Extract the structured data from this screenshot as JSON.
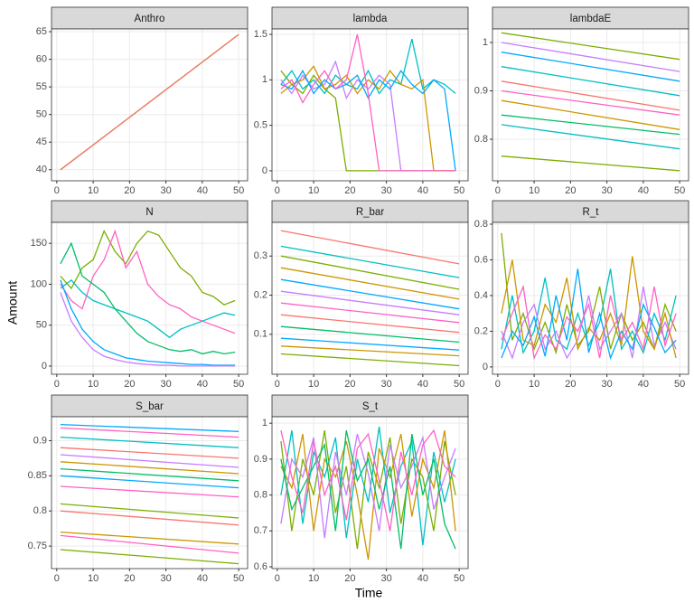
{
  "xlabel": "Time",
  "ylabel": "Amount",
  "chart_data": [
    {
      "type": "line",
      "title": "Anthro",
      "x": [
        1,
        50
      ],
      "xlim": [
        -1.45,
        52.45
      ],
      "xticks": [
        0,
        10,
        20,
        30,
        40,
        50
      ],
      "ylim": [
        38.0,
        65.5
      ],
      "yticks": [
        40,
        45,
        50,
        55,
        60,
        65
      ],
      "grid": true,
      "series": [
        {
          "color": "#7CAE00",
          "values": [
            40,
            64.5
          ]
        },
        {
          "color": "#F8766D",
          "values": [
            40,
            64.5
          ]
        }
      ]
    },
    {
      "type": "line",
      "title": "lambda",
      "x": [
        1,
        4,
        7,
        10,
        13,
        16,
        19,
        22,
        25,
        28,
        31,
        34,
        37,
        40,
        43,
        46,
        49
      ],
      "xlim": [
        -1.45,
        52.45
      ],
      "xticks": [
        0,
        10,
        20,
        30,
        40,
        50
      ],
      "ylim": [
        -0.11,
        1.56
      ],
      "yticks": [
        0.0,
        0.5,
        1.0,
        1.5
      ],
      "grid": true,
      "series": [
        {
          "color": "#7CAE00",
          "values": [
            1.1,
            0.95,
            0.85,
            1.05,
            0.9,
            0.8,
            0,
            0,
            0,
            0,
            0,
            0,
            0,
            0,
            0,
            0,
            0
          ]
        },
        {
          "color": "#00BFC4",
          "values": [
            0.95,
            1.1,
            0.9,
            1.0,
            0.85,
            1.05,
            0.95,
            0.9,
            1.1,
            0.85,
            1.0,
            0.95,
            1.45,
            0.9,
            1.0,
            0.95,
            0.85
          ]
        },
        {
          "color": "#C77CFF",
          "values": [
            1.0,
            0.85,
            1.05,
            0.9,
            0.95,
            1.2,
            0.8,
            1.0,
            0.9,
            1.05,
            0.95,
            0,
            0,
            0,
            0,
            0,
            0
          ]
        },
        {
          "color": "#CD9600",
          "values": [
            0.85,
            0.95,
            1.0,
            1.15,
            0.9,
            0.95,
            1.05,
            0.85,
            1.0,
            0.9,
            1.1,
            0.95,
            0.9,
            1.0,
            0,
            0,
            0
          ]
        },
        {
          "color": "#00A9FF",
          "values": [
            0.95,
            0.9,
            1.1,
            0.85,
            1.0,
            0.9,
            0.95,
            1.05,
            0.8,
            1.0,
            0.9,
            1.1,
            0.95,
            0.85,
            1.0,
            0.9,
            0
          ]
        },
        {
          "color": "#FF61C3",
          "values": [
            0.9,
            1.0,
            0.75,
            0.95,
            1.1,
            0.9,
            1.0,
            1.5,
            0.85,
            0,
            0,
            0,
            0,
            0,
            0,
            0,
            0
          ]
        }
      ]
    },
    {
      "type": "line",
      "title": "lambdaE",
      "x": [
        1,
        50
      ],
      "xlim": [
        -1.45,
        52.45
      ],
      "xticks": [
        0,
        10,
        20,
        30,
        40,
        50
      ],
      "ylim": [
        0.714,
        1.028
      ],
      "yticks": [
        0.8,
        0.9,
        1.0
      ],
      "grid": true,
      "series": [
        {
          "color": "#7CAE00",
          "values": [
            1.02,
            0.965
          ]
        },
        {
          "color": "#C77CFF",
          "values": [
            1.0,
            0.94
          ]
        },
        {
          "color": "#00A9FF",
          "values": [
            0.98,
            0.92
          ]
        },
        {
          "color": "#00BFC4",
          "values": [
            0.95,
            0.89
          ]
        },
        {
          "color": "#F8766D",
          "values": [
            0.92,
            0.86
          ]
        },
        {
          "color": "#FF61C3",
          "values": [
            0.9,
            0.85
          ]
        },
        {
          "color": "#CD9600",
          "values": [
            0.88,
            0.82
          ]
        },
        {
          "color": "#00BE67",
          "values": [
            0.85,
            0.81
          ]
        },
        {
          "color": "#00BFC4",
          "values": [
            0.83,
            0.78
          ]
        },
        {
          "color": "#7CAE00",
          "values": [
            0.765,
            0.735
          ]
        }
      ]
    },
    {
      "type": "line",
      "title": "N",
      "x": [
        1,
        4,
        7,
        10,
        13,
        16,
        19,
        22,
        25,
        28,
        31,
        34,
        37,
        40,
        43,
        46,
        49
      ],
      "xlim": [
        -1.45,
        52.45
      ],
      "xticks": [
        0,
        10,
        20,
        30,
        40,
        50
      ],
      "ylim": [
        -10,
        175.6
      ],
      "yticks": [
        0,
        50,
        100,
        150
      ],
      "grid": true,
      "series": [
        {
          "color": "#7CAE00",
          "values": [
            110,
            95,
            120,
            130,
            165,
            140,
            125,
            150,
            165,
            160,
            140,
            120,
            110,
            90,
            85,
            75,
            80
          ]
        },
        {
          "color": "#FF61C3",
          "values": [
            100,
            80,
            70,
            110,
            130,
            165,
            120,
            140,
            100,
            85,
            75,
            70,
            60,
            55,
            50,
            45,
            40
          ]
        },
        {
          "color": "#00BFC4",
          "values": [
            95,
            105,
            90,
            80,
            75,
            70,
            65,
            60,
            55,
            45,
            35,
            45,
            50,
            55,
            60,
            65,
            62
          ]
        },
        {
          "color": "#00A9FF",
          "values": [
            105,
            70,
            45,
            30,
            20,
            15,
            10,
            8,
            6,
            5,
            4,
            3,
            2,
            2,
            1,
            1,
            1
          ]
        },
        {
          "color": "#C77CFF",
          "values": [
            90,
            55,
            35,
            20,
            12,
            8,
            5,
            3,
            2,
            1,
            1,
            0,
            0,
            0,
            0,
            0,
            0
          ]
        },
        {
          "color": "#00BE67",
          "values": [
            125,
            150,
            110,
            100,
            90,
            70,
            55,
            40,
            30,
            25,
            20,
            18,
            20,
            15,
            18,
            15,
            17
          ]
        }
      ]
    },
    {
      "type": "line",
      "title": "R_bar",
      "x": [
        1,
        50
      ],
      "xlim": [
        -1.45,
        52.45
      ],
      "xticks": [
        0,
        10,
        20,
        30,
        40,
        50
      ],
      "ylim": [
        -0.002,
        0.386
      ],
      "yticks": [
        0.1,
        0.2,
        0.3
      ],
      "grid": true,
      "series": [
        {
          "color": "#F8766D",
          "values": [
            0.365,
            0.28
          ]
        },
        {
          "color": "#00BFC4",
          "values": [
            0.325,
            0.245
          ]
        },
        {
          "color": "#7CAE00",
          "values": [
            0.3,
            0.215
          ]
        },
        {
          "color": "#CD9600",
          "values": [
            0.27,
            0.19
          ]
        },
        {
          "color": "#00A9FF",
          "values": [
            0.24,
            0.165
          ]
        },
        {
          "color": "#C77CFF",
          "values": [
            0.21,
            0.15
          ]
        },
        {
          "color": "#FF61C3",
          "values": [
            0.18,
            0.13
          ]
        },
        {
          "color": "#F8766D",
          "values": [
            0.15,
            0.105
          ]
        },
        {
          "color": "#00BE67",
          "values": [
            0.12,
            0.08
          ]
        },
        {
          "color": "#00A9FF",
          "values": [
            0.09,
            0.06
          ]
        },
        {
          "color": "#CD9600",
          "values": [
            0.07,
            0.045
          ]
        },
        {
          "color": "#7CAE00",
          "values": [
            0.05,
            0.02
          ]
        }
      ]
    },
    {
      "type": "line",
      "title": "R_t",
      "x": [
        1,
        4,
        7,
        10,
        13,
        16,
        19,
        22,
        25,
        28,
        31,
        34,
        37,
        40,
        43,
        46,
        49
      ],
      "xlim": [
        -1.45,
        52.45
      ],
      "xticks": [
        0,
        10,
        20,
        30,
        40,
        50
      ],
      "ylim": [
        -0.041,
        0.81
      ],
      "yticks": [
        0.0,
        0.2,
        0.4,
        0.6,
        0.8
      ],
      "grid": true,
      "series": [
        {
          "color": "#7CAE00",
          "values": [
            0.75,
            0.15,
            0.3,
            0.1,
            0.25,
            0.08,
            0.35,
            0.12,
            0.2,
            0.45,
            0.1,
            0.3,
            0.15,
            0.25,
            0.1,
            0.35,
            0.2
          ]
        },
        {
          "color": "#00BFC4",
          "values": [
            0.1,
            0.4,
            0.08,
            0.2,
            0.5,
            0.15,
            0.1,
            0.3,
            0.12,
            0.25,
            0.55,
            0.1,
            0.2,
            0.08,
            0.3,
            0.15,
            0.4
          ]
        },
        {
          "color": "#C77CFF",
          "values": [
            0.2,
            0.05,
            0.25,
            0.35,
            0.1,
            0.2,
            0.05,
            0.15,
            0.4,
            0.1,
            0.2,
            0.3,
            0.05,
            0.45,
            0.12,
            0.25,
            0.1
          ]
        },
        {
          "color": "#CD9600",
          "values": [
            0.3,
            0.6,
            0.15,
            0.12,
            0.35,
            0.25,
            0.5,
            0.1,
            0.22,
            0.15,
            0.3,
            0.12,
            0.62,
            0.2,
            0.1,
            0.3,
            0.05
          ]
        },
        {
          "color": "#00A9FF",
          "values": [
            0.05,
            0.2,
            0.12,
            0.28,
            0.06,
            0.4,
            0.15,
            0.55,
            0.08,
            0.3,
            0.05,
            0.2,
            0.1,
            0.35,
            0.22,
            0.08,
            0.15
          ]
        },
        {
          "color": "#FF61C3",
          "values": [
            0.15,
            0.3,
            0.45,
            0.05,
            0.18,
            0.1,
            0.28,
            0.2,
            0.35,
            0.05,
            0.4,
            0.15,
            0.25,
            0.1,
            0.45,
            0.12,
            0.3
          ]
        }
      ]
    },
    {
      "type": "line",
      "title": "S_bar",
      "x": [
        1,
        50
      ],
      "xlim": [
        -1.45,
        52.45
      ],
      "xticks": [
        0,
        10,
        20,
        30,
        40,
        50
      ],
      "ylim": [
        0.718,
        0.934
      ],
      "yticks": [
        0.75,
        0.8,
        0.85,
        0.9
      ],
      "grid": true,
      "series": [
        {
          "color": "#00A9FF",
          "values": [
            0.923,
            0.913
          ]
        },
        {
          "color": "#FF61C3",
          "values": [
            0.918,
            0.905
          ]
        },
        {
          "color": "#00BFC4",
          "values": [
            0.905,
            0.89
          ]
        },
        {
          "color": "#F8766D",
          "values": [
            0.89,
            0.875
          ]
        },
        {
          "color": "#C77CFF",
          "values": [
            0.88,
            0.862
          ]
        },
        {
          "color": "#CD9600",
          "values": [
            0.87,
            0.853
          ]
        },
        {
          "color": "#00BE67",
          "values": [
            0.86,
            0.843
          ]
        },
        {
          "color": "#00A9FF",
          "values": [
            0.85,
            0.833
          ]
        },
        {
          "color": "#FF61C3",
          "values": [
            0.835,
            0.82
          ]
        },
        {
          "color": "#7CAE00",
          "values": [
            0.81,
            0.79
          ]
        },
        {
          "color": "#F8766D",
          "values": [
            0.8,
            0.78
          ]
        },
        {
          "color": "#CD9600",
          "values": [
            0.77,
            0.753
          ]
        },
        {
          "color": "#FF61C3",
          "values": [
            0.765,
            0.74
          ]
        },
        {
          "color": "#7CAE00",
          "values": [
            0.745,
            0.725
          ]
        }
      ]
    },
    {
      "type": "line",
      "title": "S_t",
      "x": [
        1,
        4,
        7,
        10,
        13,
        16,
        19,
        22,
        25,
        28,
        31,
        34,
        37,
        40,
        43,
        46,
        49
      ],
      "xlim": [
        -1.45,
        52.45
      ],
      "xticks": [
        0,
        10,
        20,
        30,
        40,
        50
      ],
      "ylim": [
        0.595,
        1.018
      ],
      "yticks": [
        0.6,
        0.7,
        0.8,
        0.9,
        1.0
      ],
      "grid": true,
      "series": [
        {
          "color": "#7CAE00",
          "values": [
            0.95,
            0.7,
            0.9,
            0.8,
            0.98,
            0.75,
            0.88,
            0.65,
            0.92,
            0.82,
            0.96,
            0.72,
            0.9,
            0.85,
            0.7,
            0.95,
            0.8
          ]
        },
        {
          "color": "#00BFC4",
          "values": [
            0.8,
            0.98,
            0.72,
            0.92,
            0.85,
            0.96,
            0.68,
            0.9,
            0.78,
            0.99,
            0.75,
            0.88,
            0.95,
            0.66,
            0.92,
            0.78,
            0.9
          ]
        },
        {
          "color": "#CD9600",
          "values": [
            0.88,
            0.82,
            0.97,
            0.7,
            0.9,
            0.85,
            0.95,
            0.8,
            0.62,
            0.93,
            0.85,
            0.97,
            0.74,
            0.9,
            0.82,
            0.98,
            0.7
          ]
        },
        {
          "color": "#C77CFF",
          "values": [
            0.72,
            0.9,
            0.85,
            0.96,
            0.68,
            0.92,
            0.8,
            0.97,
            0.86,
            0.7,
            0.94,
            0.82,
            0.88,
            0.96,
            0.76,
            0.85,
            0.93
          ]
        },
        {
          "color": "#00BE67",
          "values": [
            0.9,
            0.76,
            0.82,
            0.88,
            0.94,
            0.7,
            0.98,
            0.84,
            0.9,
            0.76,
            0.88,
            0.65,
            0.97,
            0.8,
            0.9,
            0.72,
            0.65
          ]
        },
        {
          "color": "#FF61C3",
          "values": [
            0.98,
            0.85,
            0.75,
            0.95,
            0.8,
            0.88,
            0.73,
            0.93,
            0.97,
            0.84,
            0.7,
            0.92,
            0.8,
            0.94,
            0.98,
            0.88,
            0.85
          ]
        }
      ]
    }
  ]
}
